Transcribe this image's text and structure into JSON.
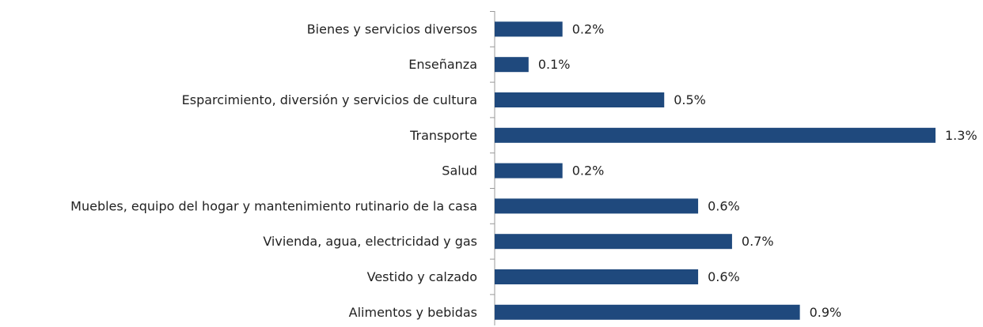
{
  "chart_data": {
    "type": "bar",
    "orientation": "horizontal",
    "categories": [
      "Bienes y servicios diversos",
      "Enseñanza",
      "Esparcimiento, diversión y servicios de cultura",
      "Transporte",
      "Salud",
      "Muebles, equipo del hogar y mantenimiento rutinario de la casa",
      "Vivienda, agua, electricidad y gas",
      "Vestido y calzado",
      "Alimentos y bebidas"
    ],
    "values": [
      0.2,
      0.1,
      0.5,
      1.3,
      0.2,
      0.6,
      0.7,
      0.6,
      0.9
    ],
    "value_labels": [
      "0.2%",
      "0.1%",
      "0.5%",
      "1.3%",
      "0.2%",
      "0.6%",
      "0.7%",
      "0.6%",
      "0.9%"
    ],
    "color": "#1f497d"
  }
}
